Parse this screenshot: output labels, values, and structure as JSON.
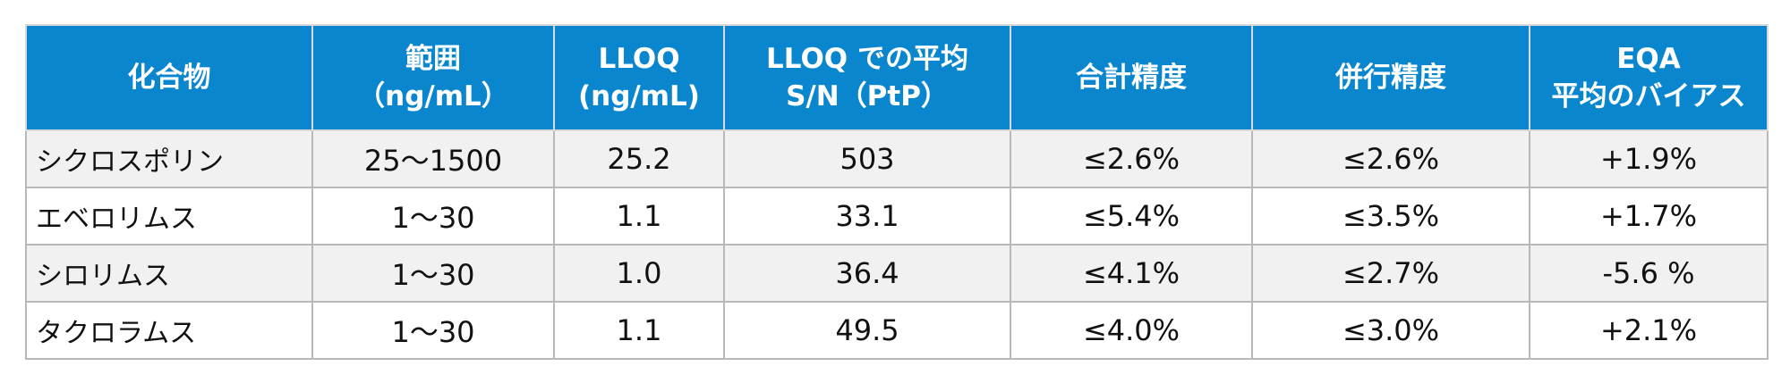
{
  "table": {
    "headers": [
      [
        "化合物"
      ],
      [
        "範囲",
        "（ng/mL）"
      ],
      [
        "LLOQ",
        "(ng/mL)"
      ],
      [
        "LLOQ での平均",
        "S/N（PtP）"
      ],
      [
        "合計精度"
      ],
      [
        "併行精度"
      ],
      [
        "EQA",
        "平均のバイアス"
      ]
    ],
    "rows": [
      [
        "シクロスポリン",
        "25～1500",
        "25.2",
        "503",
        "≤2.6%",
        "≤2.6%",
        "+1.9%"
      ],
      [
        "エベロリムス",
        "1～30",
        "1.1",
        "33.1",
        "≤5.4%",
        "≤3.5%",
        "+1.7%"
      ],
      [
        "シロリムス",
        "1～30",
        "1.0",
        "36.4",
        "≤4.1%",
        "≤2.7%",
        "-5.6 %"
      ],
      [
        "タクロラムス",
        "1～30",
        "1.1",
        "49.5",
        "≤4.0%",
        "≤3.0%",
        "+2.1%"
      ]
    ]
  },
  "colors": {
    "header_bg": "#0a86cf",
    "header_text": "#ffffff",
    "stripe": "#f1f1f1",
    "border": "#b8b8b8"
  }
}
